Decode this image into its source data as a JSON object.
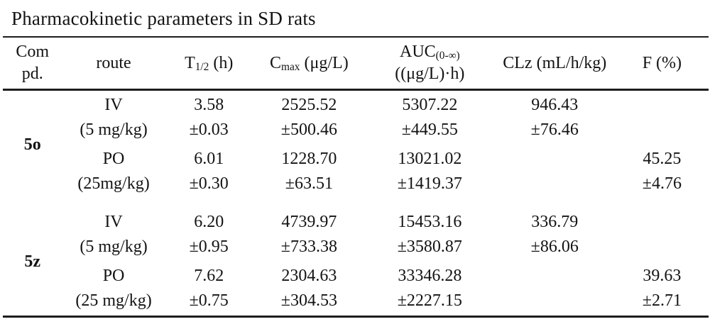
{
  "title": "Pharmacokinetic parameters in SD rats",
  "table": {
    "headers": {
      "compd_line1": "Com",
      "compd_line2": "pd.",
      "route": "route",
      "t12": {
        "base": "T",
        "sub": "1/2",
        "rest": " (h)"
      },
      "cmax": {
        "base": "C",
        "sub": "max",
        "rest": " (μg/L)"
      },
      "auc": {
        "base": "AUC",
        "sub": "(0-∞)",
        "line2": "((μg/L)·h)"
      },
      "clz": "CLz (mL/h/kg)",
      "f": "F (%)"
    },
    "rows": [
      {
        "compound": "5o",
        "groups": [
          {
            "route": "IV",
            "dose": "(5 mg/kg)",
            "t12": "3.58",
            "t12_sd": "±0.03",
            "cmax": "2525.52",
            "cmax_sd": "±500.46",
            "auc": "5307.22",
            "auc_sd": "±449.55",
            "clz": "946.43",
            "clz_sd": "±76.46",
            "f": "",
            "f_sd": ""
          },
          {
            "route": "PO",
            "dose": "(25mg/kg)",
            "t12": "6.01",
            "t12_sd": "±0.30",
            "cmax": "1228.70",
            "cmax_sd": "±63.51",
            "auc": "13021.02",
            "auc_sd": "±1419.37",
            "clz": "",
            "clz_sd": "",
            "f": "45.25",
            "f_sd": "±4.76"
          }
        ]
      },
      {
        "compound": "5z",
        "groups": [
          {
            "route": "IV",
            "dose": "(5 mg/kg)",
            "t12": "6.20",
            "t12_sd": "±0.95",
            "cmax": "4739.97",
            "cmax_sd": "±733.38",
            "auc": "15453.16",
            "auc_sd": "±3580.87",
            "clz": "336.79",
            "clz_sd": "±86.06",
            "f": "",
            "f_sd": ""
          },
          {
            "route": "PO",
            "dose": "(25 mg/kg)",
            "t12": "7.62",
            "t12_sd": "±0.75",
            "cmax": "2304.63",
            "cmax_sd": "±304.53",
            "auc": "33346.28",
            "auc_sd": "±2227.15",
            "clz": "",
            "clz_sd": "",
            "f": "39.63",
            "f_sd": "±2.71"
          }
        ]
      }
    ]
  }
}
